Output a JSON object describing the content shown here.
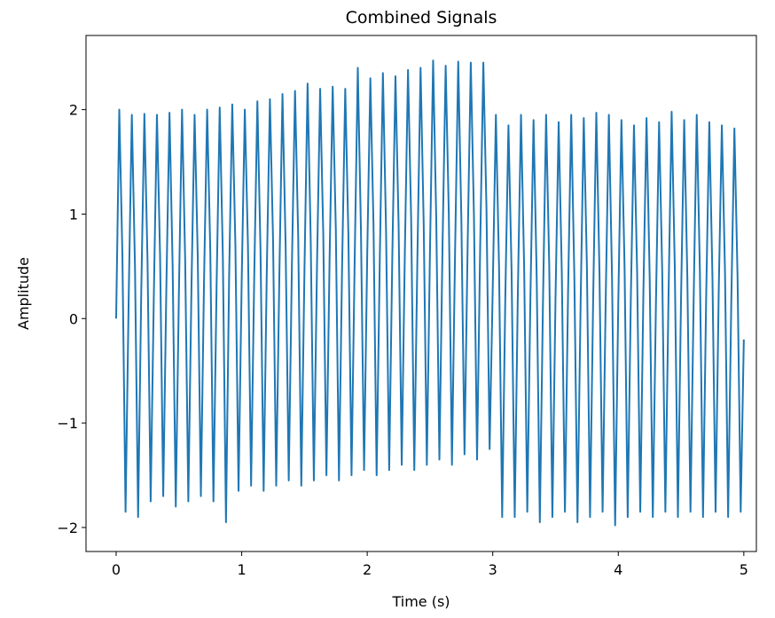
{
  "chart_data": {
    "type": "line",
    "title": "Combined Signals",
    "x_label": "Time (s)",
    "y_label": "Amplitude",
    "x": [
      0,
      0.025,
      0.05,
      0.075,
      0.1,
      0.125,
      0.15,
      0.175,
      0.2,
      0.225,
      0.25,
      0.275,
      0.3,
      0.325,
      0.35,
      0.375,
      0.4,
      0.425,
      0.45,
      0.475,
      0.5,
      0.525,
      0.55,
      0.575,
      0.6,
      0.625,
      0.65,
      0.675,
      0.7,
      0.725,
      0.75,
      0.775,
      0.8,
      0.825,
      0.85,
      0.875,
      0.9,
      0.925,
      0.95,
      0.975,
      1,
      1.025,
      1.05,
      1.075,
      1.1,
      1.125,
      1.15,
      1.175,
      1.2,
      1.225,
      1.25,
      1.275,
      1.3,
      1.325,
      1.35,
      1.375,
      1.4,
      1.425,
      1.45,
      1.475,
      1.5,
      1.525,
      1.55,
      1.575,
      1.6,
      1.625,
      1.65,
      1.675,
      1.7,
      1.725,
      1.75,
      1.775,
      1.8,
      1.825,
      1.85,
      1.875,
      1.9,
      1.925,
      1.95,
      1.975,
      2,
      2.025,
      2.05,
      2.075,
      2.1,
      2.125,
      2.15,
      2.175,
      2.2,
      2.225,
      2.25,
      2.275,
      2.3,
      2.325,
      2.35,
      2.375,
      2.4,
      2.425,
      2.45,
      2.475,
      2.5,
      2.525,
      2.55,
      2.575,
      2.6,
      2.625,
      2.65,
      2.675,
      2.7,
      2.725,
      2.75,
      2.775,
      2.8,
      2.825,
      2.85,
      2.875,
      2.9,
      2.925,
      2.95,
      2.975,
      3,
      3.025,
      3.05,
      3.075,
      3.1,
      3.125,
      3.15,
      3.175,
      3.2,
      3.225,
      3.25,
      3.275,
      3.3,
      3.325,
      3.35,
      3.375,
      3.4,
      3.425,
      3.45,
      3.475,
      3.5,
      3.525,
      3.55,
      3.575,
      3.6,
      3.625,
      3.65,
      3.675,
      3.7,
      3.725,
      3.75,
      3.775,
      3.8,
      3.825,
      3.85,
      3.875,
      3.9,
      3.925,
      3.95,
      3.975,
      4,
      4.025,
      4.05,
      4.075,
      4.1,
      4.125,
      4.15,
      4.175,
      4.2,
      4.225,
      4.25,
      4.275,
      4.3,
      4.325,
      4.35,
      4.375,
      4.4,
      4.425,
      4.45,
      4.475,
      4.5,
      4.525,
      4.55,
      4.575,
      4.6,
      4.625,
      4.65,
      4.675,
      4.7,
      4.725,
      4.75,
      4.775,
      4.8,
      4.825,
      4.85,
      4.875,
      4.9,
      4.925,
      4.95,
      4.975,
      5
    ],
    "series": [
      {
        "color": "#1f77b4",
        "values": [
          0,
          2.0,
          0.6,
          -1.85,
          0.2,
          1.95,
          0.5,
          -1.9,
          0.25,
          1.96,
          0.55,
          -1.75,
          0.2,
          1.95,
          0.6,
          -1.7,
          0.3,
          1.97,
          0.5,
          -1.8,
          0.25,
          2.0,
          0.55,
          -1.75,
          0.3,
          1.95,
          0.6,
          -1.7,
          0.35,
          2.0,
          0.65,
          -1.75,
          0.3,
          2.02,
          0.6,
          -1.95,
          0.4,
          2.05,
          0.7,
          -1.65,
          0.35,
          2.0,
          0.7,
          -1.6,
          0.4,
          2.08,
          0.65,
          -1.65,
          0.45,
          2.1,
          0.75,
          -1.6,
          0.4,
          2.15,
          0.7,
          -1.55,
          0.5,
          2.18,
          0.8,
          -1.6,
          0.45,
          2.25,
          0.75,
          -1.55,
          0.5,
          2.2,
          0.8,
          -1.5,
          0.55,
          2.22,
          0.85,
          -1.55,
          0.5,
          2.2,
          0.8,
          -1.5,
          0.55,
          2.4,
          0.85,
          -1.45,
          0.6,
          2.3,
          0.9,
          -1.5,
          0.55,
          2.35,
          0.85,
          -1.45,
          0.6,
          2.32,
          0.9,
          -1.4,
          0.65,
          2.38,
          0.95,
          -1.45,
          0.6,
          2.4,
          0.9,
          -1.4,
          0.65,
          2.47,
          0.95,
          -1.35,
          0.7,
          2.42,
          1.0,
          -1.4,
          0.65,
          2.46,
          0.95,
          -1.3,
          0.7,
          2.45,
          1.0,
          -1.35,
          0.7,
          2.45,
          1.05,
          -1.25,
          0.3,
          1.95,
          0.5,
          -1.9,
          0.2,
          1.85,
          0.45,
          -1.9,
          0.25,
          1.95,
          0.5,
          -1.85,
          0.2,
          1.9,
          0.4,
          -1.95,
          0.15,
          1.95,
          0.5,
          -1.9,
          0.2,
          1.88,
          0.45,
          -1.85,
          0.25,
          1.95,
          0.4,
          -1.95,
          0.15,
          1.92,
          0.5,
          -1.9,
          0.2,
          1.97,
          0.45,
          -1.85,
          0.2,
          1.95,
          0.4,
          -1.98,
          0.15,
          1.9,
          0.5,
          -1.9,
          0.2,
          1.85,
          0.45,
          -1.85,
          0.25,
          1.92,
          0.4,
          -1.9,
          0.15,
          1.88,
          0.45,
          -1.85,
          0.2,
          1.98,
          0.5,
          -1.9,
          0.2,
          1.9,
          0.4,
          -1.85,
          0.15,
          1.95,
          0.45,
          -1.9,
          0.2,
          1.88,
          0.4,
          -1.85,
          0.25,
          1.85,
          0.45,
          -1.9,
          0.15,
          1.82,
          0.4,
          -1.85,
          -0.2
        ]
      }
    ],
    "xlim": [
      -0.24,
      5.1
    ],
    "ylim": [
      -2.23,
      2.71
    ],
    "xticks": [
      0,
      1,
      2,
      3,
      4,
      5
    ],
    "yticks": [
      {
        "value": -2,
        "label": "−2"
      },
      {
        "value": -1,
        "label": "−1"
      },
      0,
      1,
      2
    ]
  }
}
